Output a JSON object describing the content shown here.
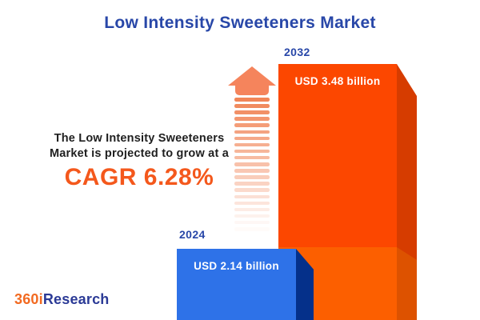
{
  "title": "Low Intensity Sweeteners Market",
  "tagline": {
    "line1": "The Low Intensity Sweeteners",
    "line2": "Market is projected to grow at a",
    "cagr": "CAGR 6.28%"
  },
  "chart_data": {
    "type": "bar",
    "title": "Low Intensity Sweeteners Market",
    "categories": [
      "2024",
      "2032"
    ],
    "values": [
      2.14,
      3.48
    ],
    "unit": "USD billion",
    "value_labels": [
      "USD 2.14 billion",
      "USD 3.48 billion"
    ],
    "cagr_percent": 6.28,
    "style": "3d-vertical-bars",
    "legend": "none",
    "axes": "none",
    "bar_colors": [
      "#2E72E8",
      "#FC4700"
    ]
  },
  "bars": [
    {
      "year": "2024",
      "label": "USD 2.14 billion"
    },
    {
      "year": "2032",
      "label": "USD 3.48 billion"
    }
  ],
  "icons": {
    "growth_arrow": "up-arrow-fading-stripes"
  },
  "logo": {
    "prefix": "360i",
    "suffix": "Research"
  },
  "colors": {
    "title_blue": "#2847A8",
    "cagr_orange": "#F4581C",
    "text_dark": "#1F1F1F",
    "bar_2024_face": "#2E72E8",
    "bar_2024_side": "#05308A",
    "bar_2032_face_top": "#FC4700",
    "bar_2032_face_bottom": "#FC5F00",
    "bar_2032_side_top": "#D63C00",
    "bar_2032_side_bottom": "#DD5200",
    "arrow_orange": "#F5845C",
    "logo_orange": "#F26A21",
    "logo_blue": "#2B3A96",
    "background": "#FFFFFF"
  }
}
